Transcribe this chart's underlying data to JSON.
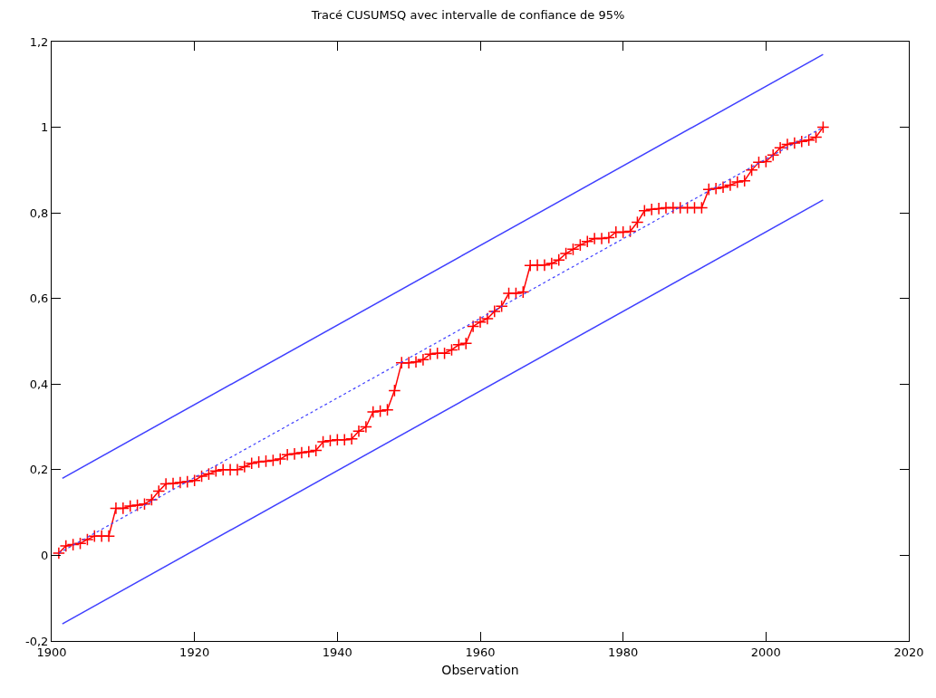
{
  "chart_data": {
    "type": "line",
    "title": "Tracé CUSUMSQ avec intervalle de confiance de 95%",
    "xlabel": "Observation",
    "xlim": [
      1900,
      2020
    ],
    "xticks": [
      1900,
      1920,
      1940,
      1960,
      1980,
      2000,
      2020
    ],
    "ylim": [
      -0.2,
      1.2
    ],
    "yticks": [
      {
        "value": -0.2,
        "label": "-0,2"
      },
      0,
      {
        "value": 0.2,
        "label": "0,2"
      },
      {
        "value": 0.4,
        "label": "0,4"
      },
      {
        "value": 0.6,
        "label": "0,6"
      },
      {
        "value": 0.8,
        "label": "0,8"
      },
      1,
      {
        "value": 1.2,
        "label": "1,2"
      }
    ],
    "grid": false,
    "series": [
      {
        "color": "#ff0000",
        "marker": "cross",
        "line_style": "solid",
        "x": [
          1901,
          1902,
          1903,
          1904,
          1905,
          1906,
          1907,
          1908,
          1909,
          1910,
          1911,
          1912,
          1913,
          1914,
          1915,
          1916,
          1917,
          1918,
          1919,
          1920,
          1921,
          1922,
          1923,
          1924,
          1925,
          1926,
          1927,
          1928,
          1929,
          1930,
          1931,
          1932,
          1933,
          1934,
          1935,
          1936,
          1937,
          1938,
          1939,
          1940,
          1941,
          1942,
          1943,
          1944,
          1945,
          1946,
          1947,
          1948,
          1949,
          1950,
          1951,
          1952,
          1953,
          1954,
          1955,
          1956,
          1957,
          1958,
          1959,
          1960,
          1961,
          1962,
          1963,
          1964,
          1965,
          1966,
          1967,
          1968,
          1969,
          1970,
          1971,
          1972,
          1973,
          1974,
          1975,
          1976,
          1977,
          1978,
          1979,
          1980,
          1981,
          1982,
          1983,
          1984,
          1985,
          1986,
          1987,
          1988,
          1989,
          1990,
          1991,
          1992,
          1993,
          1994,
          1995,
          1996,
          1997,
          1998,
          1999,
          2000,
          2001,
          2002,
          2003,
          2004,
          2005,
          2006,
          2007,
          2008
        ],
        "values": [
          0.005,
          0.022,
          0.025,
          0.028,
          0.037,
          0.045,
          0.045,
          0.045,
          0.11,
          0.11,
          0.115,
          0.117,
          0.12,
          0.13,
          0.15,
          0.167,
          0.168,
          0.17,
          0.172,
          0.175,
          0.185,
          0.19,
          0.197,
          0.2,
          0.2,
          0.2,
          0.207,
          0.215,
          0.218,
          0.22,
          0.222,
          0.225,
          0.235,
          0.237,
          0.24,
          0.242,
          0.245,
          0.265,
          0.268,
          0.27,
          0.27,
          0.272,
          0.29,
          0.3,
          0.335,
          0.337,
          0.34,
          0.385,
          0.45,
          0.45,
          0.452,
          0.457,
          0.47,
          0.472,
          0.472,
          0.48,
          0.492,
          0.495,
          0.535,
          0.545,
          0.553,
          0.57,
          0.582,
          0.612,
          0.612,
          0.615,
          0.677,
          0.678,
          0.678,
          0.682,
          0.69,
          0.705,
          0.715,
          0.725,
          0.733,
          0.74,
          0.74,
          0.742,
          0.755,
          0.755,
          0.757,
          0.778,
          0.805,
          0.808,
          0.81,
          0.812,
          0.812,
          0.812,
          0.812,
          0.812,
          0.812,
          0.855,
          0.857,
          0.86,
          0.865,
          0.872,
          0.875,
          0.9,
          0.918,
          0.92,
          0.935,
          0.952,
          0.96,
          0.963,
          0.967,
          0.97,
          0.977,
          1.0
        ]
      },
      {
        "color": "#4040ff",
        "marker": "none",
        "line_style": "dotted",
        "x": [
          1901,
          2008
        ],
        "values": [
          0.005,
          1.0
        ]
      },
      {
        "color": "#4040ff",
        "marker": "none",
        "line_style": "solid",
        "x": [
          1901.5,
          2008
        ],
        "values": [
          0.18,
          1.17
        ]
      },
      {
        "color": "#4040ff",
        "marker": "none",
        "line_style": "solid",
        "x": [
          1901.5,
          2008
        ],
        "values": [
          -0.16,
          0.83
        ]
      }
    ]
  }
}
